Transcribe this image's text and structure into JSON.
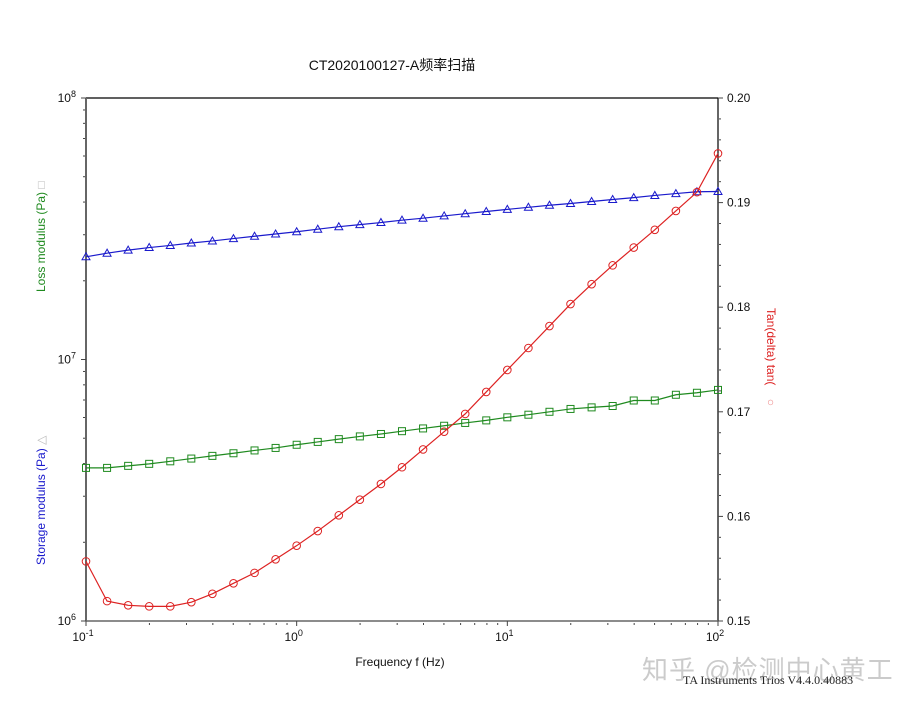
{
  "page": {
    "title": "CT2020100127-A频率扫描",
    "footer": "TA Instruments Trios V4.4.0.40883",
    "watermark": "知乎 @检测中心黄工"
  },
  "colors": {
    "storage": "#1a1acc",
    "loss": "#1f8a1f",
    "tan": "#dd2222",
    "axis": "#000000"
  },
  "labels": {
    "left_top": "Loss modulus    (Pa)",
    "left_top_marker": "□",
    "left_bottom": "Storage modulus    (Pa)",
    "left_bottom_marker": "△",
    "right": "Tan(delta) tan(",
    "right_marker": "○",
    "xlabel": "Frequency f (Hz)"
  },
  "chart_data": {
    "type": "line",
    "title": "CT2020100127-A频率扫描",
    "xlabel": "Frequency f (Hz)",
    "ylabel_left": "Storage modulus (Pa) △ / Loss modulus (Pa) □",
    "ylabel_right": "Tan(delta) ○",
    "xscale": "log",
    "yscale_left": "log",
    "xlim": [
      0.1,
      100
    ],
    "ylim_left": [
      1000000,
      100000000
    ],
    "ylim_right": [
      0.15,
      0.2
    ],
    "x_ticks": [
      "10^-1",
      "10^0",
      "10^1",
      "10^2"
    ],
    "y_left_ticks": [
      "10^6",
      "10^7",
      "10^8"
    ],
    "y_right_ticks": [
      "0.15",
      "0.16",
      "0.17",
      "0.18",
      "0.19",
      "0.20"
    ],
    "grid": false,
    "x": [
      0.1,
      0.1259,
      0.1585,
      0.1995,
      0.2512,
      0.3162,
      0.3981,
      0.5012,
      0.631,
      0.7943,
      1.0,
      1.259,
      1.585,
      1.995,
      2.512,
      3.162,
      3.981,
      5.012,
      6.31,
      7.943,
      10.0,
      12.59,
      15.85,
      19.95,
      25.12,
      31.62,
      39.81,
      50.12,
      63.1,
      79.43,
      100.0
    ],
    "series": [
      {
        "name": "Storage modulus (Pa)",
        "axis": "left",
        "marker": "triangle",
        "color": "#1a1acc",
        "values": [
          24700000,
          25500000,
          26200000,
          26800000,
          27300000,
          27900000,
          28400000,
          29000000,
          29600000,
          30200000,
          30800000,
          31500000,
          32200000,
          32800000,
          33400000,
          34100000,
          34700000,
          35400000,
          36100000,
          36800000,
          37500000,
          38200000,
          38900000,
          39500000,
          40200000,
          40900000,
          41600000,
          42400000,
          43100000,
          43800000,
          43900000
        ]
      },
      {
        "name": "Loss modulus (Pa)",
        "axis": "left",
        "marker": "square",
        "color": "#1f8a1f",
        "values": [
          3850000,
          3850000,
          3920000,
          3990000,
          4080000,
          4180000,
          4280000,
          4380000,
          4490000,
          4590000,
          4720000,
          4840000,
          4960000,
          5080000,
          5190000,
          5320000,
          5450000,
          5580000,
          5720000,
          5850000,
          6010000,
          6150000,
          6310000,
          6470000,
          6560000,
          6640000,
          6970000,
          6970000,
          7330000,
          7460000,
          7650000
        ]
      },
      {
        "name": "Tan(delta)",
        "axis": "right",
        "marker": "circle",
        "color": "#dd2222",
        "values": [
          0.1557,
          0.1519,
          0.1515,
          0.1514,
          0.1514,
          0.1518,
          0.1526,
          0.1536,
          0.1546,
          0.1559,
          0.1572,
          0.1586,
          0.1601,
          0.1616,
          0.1631,
          0.1647,
          0.1664,
          0.1681,
          0.1698,
          0.1719,
          0.174,
          0.1761,
          0.1782,
          0.1803,
          0.1822,
          0.184,
          0.1857,
          0.1874,
          0.1892,
          0.191,
          0.1947
        ]
      }
    ]
  }
}
